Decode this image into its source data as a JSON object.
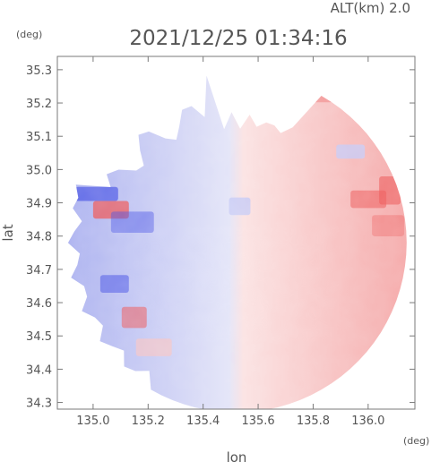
{
  "header": {
    "altitude": "ALT(km) 2.0",
    "timestamp": "2021/12/25 01:34:16",
    "unit_left": "(deg)",
    "unit_right": "(deg)"
  },
  "chart_data": {
    "type": "heatmap",
    "title": "2021/12/25 01:34:16",
    "subtitle": "ALT(km) 2.0",
    "xlabel": "lon",
    "ylabel": "lat",
    "xlim": [
      134.87,
      136.17
    ],
    "ylim": [
      34.28,
      35.34
    ],
    "x_ticks": [
      135.0,
      135.2,
      135.4,
      135.6,
      135.8,
      136.0
    ],
    "x_tick_labels": [
      "135.0",
      "135.2",
      "135.4",
      "135.6",
      "135.8",
      "136.0"
    ],
    "y_ticks": [
      34.3,
      34.4,
      34.5,
      34.6,
      34.7,
      34.8,
      34.9,
      35.0,
      35.1,
      35.2,
      35.3
    ],
    "y_tick_labels": [
      "34.3",
      "34.4",
      "34.5",
      "34.6",
      "34.7",
      "34.8",
      "34.9",
      "35.0",
      "35.1",
      "35.2",
      "35.3"
    ],
    "grid": false,
    "legend": "none",
    "colors": {
      "approaching_strong": "#4a55e6",
      "approaching_weak": "#c8ccf6",
      "receding_weak": "#f7c6c6",
      "receding_strong": "#ee5a5a",
      "axis": "#7a7a7a"
    },
    "radar_center": [
      135.52,
      34.78
    ],
    "radar_range_deg": [
      0.62,
      0.51
    ],
    "regions": [
      {
        "name": "approaching-west",
        "sign": "negative",
        "strength": 0.45
      },
      {
        "name": "receding-east",
        "sign": "positive",
        "strength": 0.45
      },
      {
        "name": "receding-northeast-cells",
        "sign": "positive",
        "strength": 0.85
      },
      {
        "name": "approaching-west-edge",
        "sign": "negative",
        "strength": 0.9
      },
      {
        "name": "receding-southwest-cells",
        "sign": "positive",
        "strength": 0.8
      }
    ]
  }
}
